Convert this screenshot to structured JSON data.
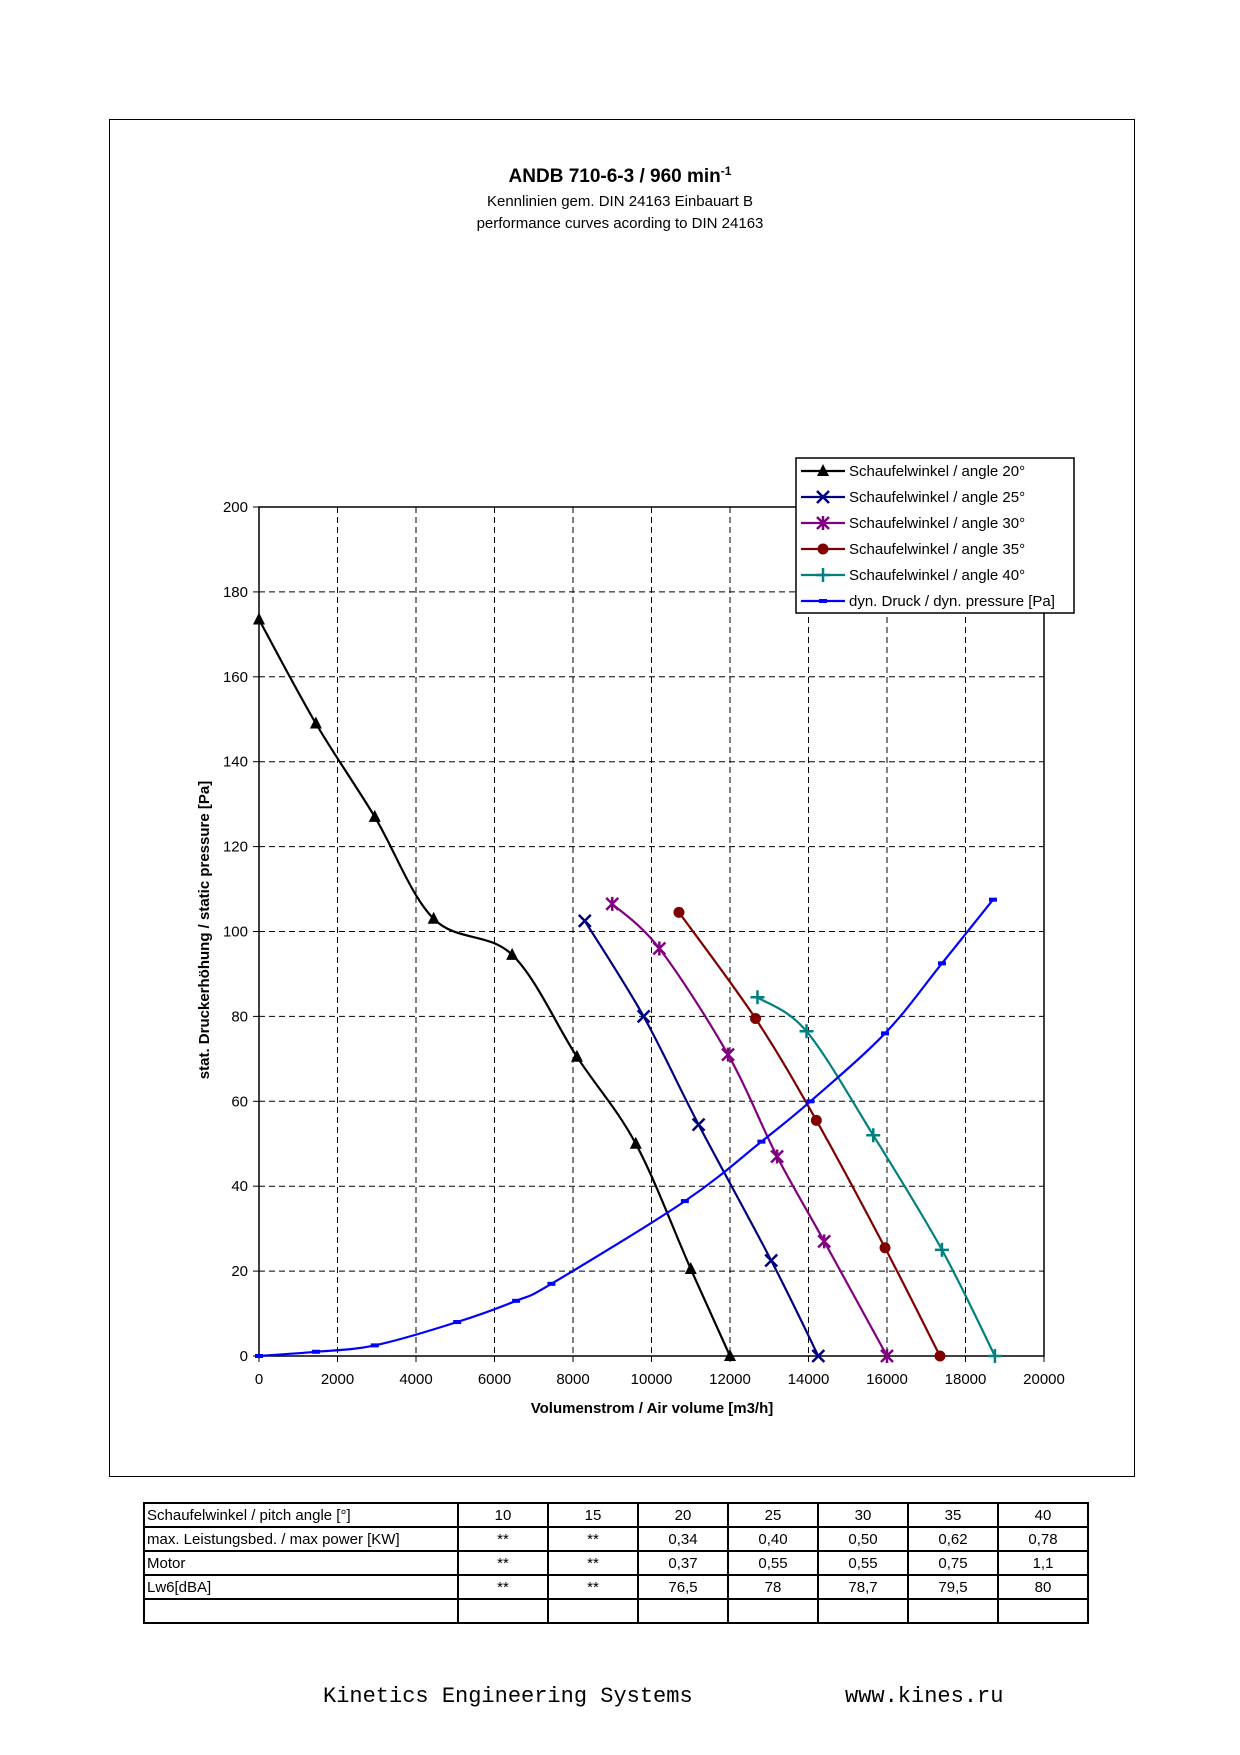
{
  "chart_data": {
    "type": "line",
    "title": "ANDB 710-6-3 / 960 min",
    "title_superscript": "-1",
    "subtitle_1": "Kennlinien gem. DIN 24163 Einbauart B",
    "subtitle_2": "performance curves acording to DIN 24163",
    "xlabel": "Volumenstrom / Air volume [m3/h]",
    "ylabel": "stat. Druckerhöhung / static pressure [Pa]",
    "xlim": [
      0,
      20000
    ],
    "ylim": [
      0,
      200
    ],
    "xticks": [
      "0",
      "2000",
      "4000",
      "6000",
      "8000",
      "10000",
      "12000",
      "14000",
      "16000",
      "18000",
      "20000"
    ],
    "yticks": [
      "0",
      "20",
      "40",
      "60",
      "80",
      "100",
      "120",
      "140",
      "160",
      "180",
      "200"
    ],
    "grid": true,
    "legend_position": "top-right",
    "series": [
      {
        "name": "Schaufelwinkel / angle 20°",
        "color": "#000000",
        "marker": "triangle",
        "x": [
          0,
          1450,
          2950,
          4450,
          6450,
          8100,
          9600,
          11000,
          12000
        ],
        "y": [
          173.5,
          149,
          127,
          103,
          94.5,
          70.5,
          50,
          20.5,
          0
        ]
      },
      {
        "name": "Schaufelwinkel / angle 25°",
        "color": "#000080",
        "marker": "x",
        "x": [
          8300,
          9800,
          11200,
          13050,
          14250
        ],
        "y": [
          102.5,
          80,
          54.5,
          22.5,
          0
        ]
      },
      {
        "name": "Schaufelwinkel / angle 30°",
        "color": "#800080",
        "marker": "star",
        "x": [
          9000,
          10200,
          11950,
          13200,
          14400,
          16000
        ],
        "y": [
          106.5,
          96,
          71,
          47,
          27,
          0
        ]
      },
      {
        "name": "Schaufelwinkel / angle 35°",
        "color": "#800000",
        "marker": "circle",
        "x": [
          10700,
          12650,
          14200,
          15950,
          17350
        ],
        "y": [
          104.5,
          79.5,
          55.5,
          25.5,
          0
        ]
      },
      {
        "name": "Schaufelwinkel / angle 40°",
        "color": "#008080",
        "marker": "plus",
        "x": [
          12700,
          13950,
          15650,
          17400,
          18750
        ],
        "y": [
          84.5,
          76.5,
          52,
          25,
          0
        ]
      },
      {
        "name": "dyn. Druck / dyn. pressure [Pa]",
        "color": "#0000ff",
        "marker": "dash",
        "x": [
          0,
          1450,
          2950,
          5050,
          6550,
          7450,
          10850,
          12800,
          14050,
          15950,
          17400,
          18700
        ],
        "y": [
          0,
          1,
          2.5,
          8,
          13,
          17,
          36.5,
          50.5,
          60,
          76,
          92.5,
          107.5
        ]
      }
    ]
  },
  "table": {
    "rows": [
      {
        "label": "Schaufelwinkel / pitch angle [°]",
        "values": [
          "10",
          "15",
          "20",
          "25",
          "30",
          "35",
          "40"
        ]
      },
      {
        "label": "max. Leistungsbed. / max power [KW]",
        "values": [
          "**",
          "**",
          "0,34",
          "0,40",
          "0,50",
          "0,62",
          "0,78"
        ]
      },
      {
        "label": "Motor",
        "values": [
          "**",
          "**",
          "0,37",
          "0,55",
          "0,55",
          "0,75",
          "1,1"
        ]
      },
      {
        "label": "Lw6[dBA]",
        "values": [
          "**",
          "**",
          "76,5",
          "78",
          "78,7",
          "79,5",
          "80"
        ]
      },
      {
        "label": "",
        "values": [
          "",
          "",
          "",
          "",
          "",
          "",
          ""
        ]
      }
    ]
  },
  "footer": {
    "company": "Kinetics Engineering Systems",
    "url": "www.kines.ru"
  }
}
